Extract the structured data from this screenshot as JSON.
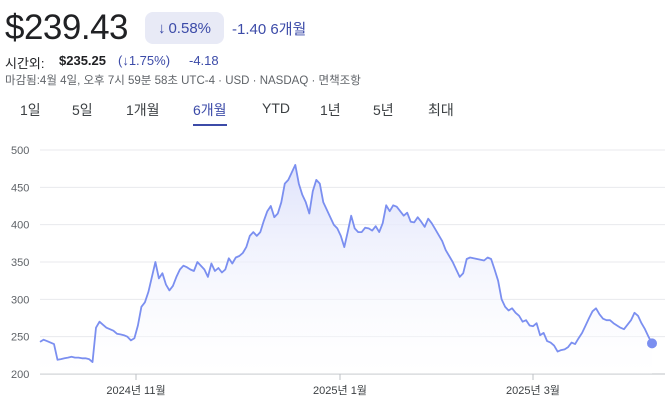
{
  "quote": {
    "price": "$239.43",
    "change_pct": "0.58%",
    "change_abs": "-1.40",
    "period_label": "6개월"
  },
  "after_hours": {
    "label": "시간외:",
    "price": "$235.25",
    "change_pct": "(↓1.75%)",
    "change_abs": "-4.18"
  },
  "meta": "마감됨:4월 4일, 오후 7시 59분 58초 UTC-4 · USD · NASDAQ · 면책조항",
  "tabs": [
    {
      "label": "1일"
    },
    {
      "label": "5일"
    },
    {
      "label": "1개월"
    },
    {
      "label": "6개월"
    },
    {
      "label": "YTD"
    },
    {
      "label": "1년"
    },
    {
      "label": "5년"
    },
    {
      "label": "최대"
    }
  ],
  "active_tab": "6개월",
  "colors": {
    "accent": "#3c4ba8",
    "line": "#7b8ff0",
    "fill_top": "#dfe3fb",
    "chip_bg": "#e8eaf6"
  },
  "chart_data": {
    "type": "area",
    "ylim": [
      200,
      500
    ],
    "yticks": [
      200,
      250,
      300,
      350,
      400,
      450,
      500
    ],
    "xticks": [
      "2024년 11월",
      "2025년 1월",
      "2025년 3월"
    ],
    "values": [
      243,
      246,
      244,
      242,
      240,
      219,
      220,
      221,
      222,
      223,
      222,
      222,
      221,
      221,
      220,
      216,
      262,
      270,
      266,
      262,
      260,
      258,
      254,
      253,
      252,
      250,
      245,
      248,
      265,
      290,
      296,
      310,
      330,
      350,
      328,
      335,
      320,
      312,
      318,
      330,
      340,
      345,
      343,
      340,
      338,
      350,
      345,
      340,
      330,
      348,
      338,
      342,
      336,
      340,
      355,
      348,
      356,
      358,
      362,
      370,
      385,
      390,
      385,
      390,
      405,
      418,
      425,
      410,
      415,
      430,
      455,
      460,
      470,
      480,
      455,
      440,
      430,
      415,
      445,
      460,
      455,
      430,
      420,
      410,
      400,
      395,
      385,
      370,
      390,
      412,
      395,
      390,
      390,
      396,
      395,
      392,
      398,
      390,
      402,
      426,
      418,
      426,
      424,
      418,
      412,
      416,
      404,
      403,
      410,
      404,
      397,
      408,
      402,
      394,
      386,
      378,
      366,
      358,
      350,
      340,
      330,
      335,
      354,
      356,
      355,
      354,
      353,
      352,
      356,
      354,
      340,
      325,
      300,
      290,
      285,
      288,
      282,
      278,
      270,
      272,
      265,
      264,
      268,
      252,
      255,
      244,
      242,
      238,
      230,
      232,
      233,
      236,
      242,
      240,
      248,
      255,
      265,
      275,
      284,
      288,
      280,
      274,
      272,
      272,
      268,
      265,
      262,
      260,
      266,
      272,
      282,
      278,
      268,
      260,
      250,
      241
    ]
  }
}
